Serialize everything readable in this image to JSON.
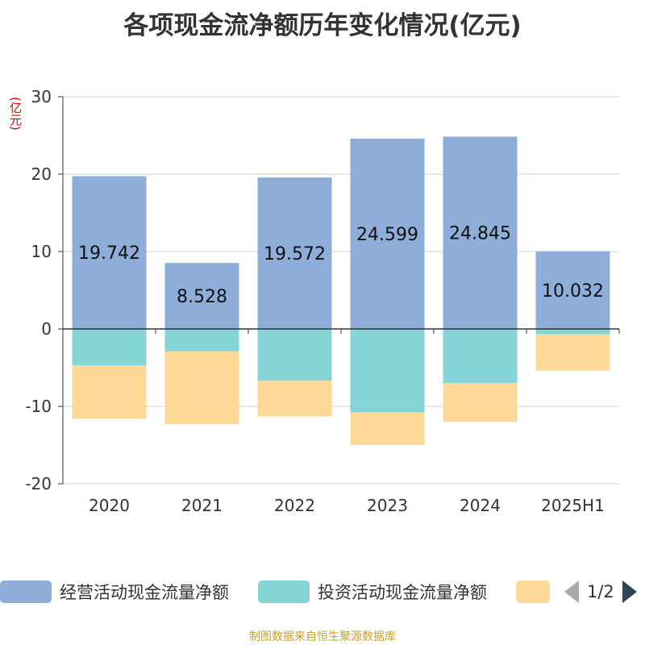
{
  "title": "各项现金流净额历年变化情况(亿元)",
  "unit_label": "(亿元)",
  "source": "制图数据来自恒生聚源数据库",
  "pagination": "1/2",
  "legend": [
    {
      "name": "经营活动现金流量净额",
      "color": "#8eadd8"
    },
    {
      "name": "投资活动现金流量净额",
      "color": "#86d5d6"
    },
    {
      "name": "",
      "color": "#fdd897"
    }
  ],
  "chart_data": {
    "type": "bar",
    "stacked": true,
    "categories": [
      "2020",
      "2021",
      "2022",
      "2023",
      "2024",
      "2025H1"
    ],
    "ylim": [
      -20,
      30
    ],
    "yticks": [
      -20,
      -10,
      0,
      10,
      20,
      30
    ],
    "ytick_labels": [
      "-20",
      "-10",
      "0",
      "10",
      "20",
      "30"
    ],
    "grid": true,
    "legend_position": "bottom",
    "series": [
      {
        "name": "经营活动现金流量净额",
        "color": "#8eadd8",
        "values": [
          19.742,
          8.528,
          19.572,
          24.599,
          24.845,
          10.032
        ],
        "labels": [
          "19.742",
          "8.528",
          "19.572",
          "24.599",
          "24.845",
          "10.032"
        ]
      },
      {
        "name": "投资活动现金流量净额",
        "color": "#86d5d6",
        "values": [
          -4.7,
          -2.9,
          -6.7,
          -10.8,
          -7.0,
          -0.7
        ]
      },
      {
        "color": "#fdd897",
        "values": [
          -6.9,
          -9.4,
          -4.6,
          -4.2,
          -5.0,
          -4.7
        ]
      }
    ]
  }
}
